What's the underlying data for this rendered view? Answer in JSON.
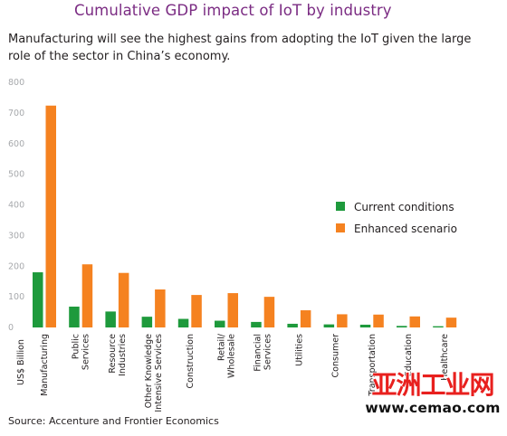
{
  "title": "Cumulative GDP impact of IoT by industry",
  "subtitle": "Manufacturing will see the highest gains from adopting the IoT given the large role of the sector in China’s economy.",
  "source": "Source: Accenture and Frontier Economics",
  "watermark": {
    "chinese": "亚洲工业网",
    "url": "www.cemao.com"
  },
  "colors": {
    "current": "#1e9a3c",
    "enhanced": "#f58220",
    "title": "#7b2c83",
    "tick": "#a7a9ac"
  },
  "chart_data": {
    "type": "bar",
    "title": "Cumulative GDP impact of IoT by industry",
    "ylabel": "US$ Billion",
    "xlabel": "",
    "ylim": [
      0,
      800
    ],
    "yticks": [
      0,
      100,
      200,
      300,
      400,
      500,
      600,
      700,
      800
    ],
    "grid": false,
    "legend_position": "right",
    "categories": [
      [
        "Manufacturing"
      ],
      [
        "Public",
        "Services"
      ],
      [
        "Resource",
        "Industries"
      ],
      [
        "Other Knowledge",
        "Intensive Services"
      ],
      [
        "Construction"
      ],
      [
        "Retail/",
        "Wholesale"
      ],
      [
        "Financial",
        "Services"
      ],
      [
        "Utilities"
      ],
      [
        "Consumer"
      ],
      [
        "Transportation"
      ],
      [
        "Education"
      ],
      [
        "Healthcare"
      ]
    ],
    "series": [
      {
        "name": "Current conditions",
        "color": "#1e9a3c",
        "values": [
          180,
          68,
          52,
          35,
          28,
          22,
          18,
          12,
          10,
          9,
          5,
          4
        ]
      },
      {
        "name": "Enhanced scenario",
        "color": "#f58220",
        "values": [
          724,
          206,
          178,
          124,
          106,
          112,
          100,
          56,
          43,
          42,
          36,
          32
        ]
      }
    ]
  }
}
